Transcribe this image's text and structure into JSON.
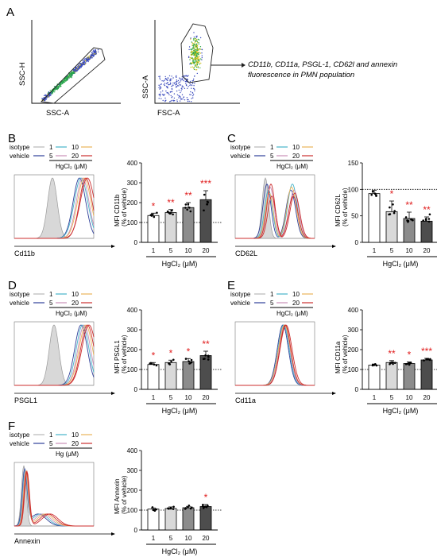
{
  "figure": {
    "panelA": {
      "letter": "A",
      "plot1": {
        "xlabel": "SSC-A",
        "ylabel": "SSC-H"
      },
      "plot2": {
        "xlabel": "FSC-A",
        "ylabel": "SSC-A"
      },
      "caption_line1": "CD11b, CD11a, PSGL-1, CD62l and annexin",
      "caption_line2": "fluorescence in PMN population"
    },
    "legend": {
      "isotype": "isotype",
      "vehicle": "vehicle",
      "c1": "1",
      "c5": "5",
      "c10": "10",
      "c20": "20",
      "hg_label": "HgCl₂ (μM)",
      "hg_label_F": "Hg (μM)"
    },
    "colors": {
      "isotype": "#b8b8b8",
      "vehicle": "#2f3f9a",
      "c1": "#46b3c9",
      "c5": "#c98fb7",
      "c10": "#e9b45a",
      "c20": "#cc2e2e",
      "sig": "#e01b1b"
    },
    "panels": [
      {
        "id": "B",
        "letter": "B",
        "hist_xlabel": "Cd11b",
        "hg": "HgCl₂ (μM)",
        "stars": [
          "*",
          "**",
          "**",
          "***"
        ]
      },
      {
        "id": "C",
        "letter": "C",
        "hist_xlabel": "CD62L",
        "hg": "HgCl₂ (μM)",
        "stars": [
          "",
          "*",
          "**",
          "**"
        ]
      },
      {
        "id": "D",
        "letter": "D",
        "hist_xlabel": "PSGL1",
        "hg": "HgCl₂ (μM)",
        "stars": [
          "*",
          "*",
          "*",
          "**"
        ]
      },
      {
        "id": "E",
        "letter": "E",
        "hist_xlabel": "Cd11a",
        "hg": "HgCl₂ (μM)",
        "stars": [
          "",
          "**",
          "*",
          "***"
        ]
      },
      {
        "id": "F",
        "letter": "F",
        "hist_xlabel": "Annexin",
        "hg": "HgCl₂ (μM)",
        "stars": [
          "",
          "",
          "",
          "*"
        ]
      }
    ]
  },
  "chart_data": [
    {
      "panel": "B",
      "type": "bar",
      "ylabel": "MFI CD11b",
      "ylabel2": "(% of vehicle)",
      "xlabel": "HgCl₂ (μM)",
      "categories": [
        "1",
        "5",
        "10",
        "20"
      ],
      "values": [
        135,
        150,
        175,
        215
      ],
      "errors": [
        12,
        15,
        25,
        45
      ],
      "ylim": [
        0,
        400
      ],
      "yticks": [
        0,
        100,
        200,
        300,
        400
      ],
      "reference_line": 100,
      "bar_colors": [
        "#ffffff",
        "#d9d9d9",
        "#8c8c8c",
        "#4d4d4d"
      ]
    },
    {
      "panel": "C",
      "type": "bar",
      "ylabel": "MFI CD62L",
      "ylabel2": "(% of vehicle)",
      "xlabel": "HgCl₂ (μM)",
      "categories": [
        "1",
        "5",
        "10",
        "20"
      ],
      "values": [
        92,
        58,
        45,
        40
      ],
      "errors": [
        6,
        20,
        12,
        8
      ],
      "ylim": [
        0,
        150
      ],
      "yticks": [
        0,
        50,
        100,
        150
      ],
      "reference_line": 100,
      "bar_colors": [
        "#ffffff",
        "#d9d9d9",
        "#8c8c8c",
        "#4d4d4d"
      ]
    },
    {
      "panel": "D",
      "type": "bar",
      "ylabel": "MFI PSGL1",
      "ylabel2": "(% of vehicle)",
      "xlabel": "HgCl₂ (μM)",
      "categories": [
        "1",
        "5",
        "10",
        "20"
      ],
      "values": [
        125,
        135,
        140,
        170
      ],
      "errors": [
        10,
        12,
        15,
        22
      ],
      "ylim": [
        0,
        400
      ],
      "yticks": [
        0,
        100,
        200,
        300,
        400
      ],
      "reference_line": 100,
      "bar_colors": [
        "#ffffff",
        "#d9d9d9",
        "#8c8c8c",
        "#4d4d4d"
      ]
    },
    {
      "panel": "E",
      "type": "bar",
      "ylabel": "MFI CD11a",
      "ylabel2": "(% of vehicle)",
      "xlabel": "HgCl₂ (μM)",
      "categories": [
        "1",
        "5",
        "10",
        "20"
      ],
      "values": [
        122,
        135,
        130,
        148
      ],
      "errors": [
        5,
        10,
        8,
        8
      ],
      "ylim": [
        0,
        400
      ],
      "yticks": [
        0,
        100,
        200,
        300,
        400
      ],
      "reference_line": 100,
      "bar_colors": [
        "#ffffff",
        "#d9d9d9",
        "#8c8c8c",
        "#4d4d4d"
      ]
    },
    {
      "panel": "F",
      "type": "bar",
      "ylabel": "MFI Annexin",
      "ylabel2": "(% of vehicle)",
      "xlabel": "HgCl₂ (μM)",
      "categories": [
        "1",
        "5",
        "10",
        "20"
      ],
      "values": [
        105,
        108,
        112,
        118
      ],
      "errors": [
        6,
        8,
        7,
        10
      ],
      "ylim": [
        0,
        400
      ],
      "yticks": [
        0,
        100,
        200,
        300,
        400
      ],
      "reference_line": 100,
      "bar_colors": [
        "#ffffff",
        "#d9d9d9",
        "#8c8c8c",
        "#4d4d4d"
      ]
    }
  ]
}
